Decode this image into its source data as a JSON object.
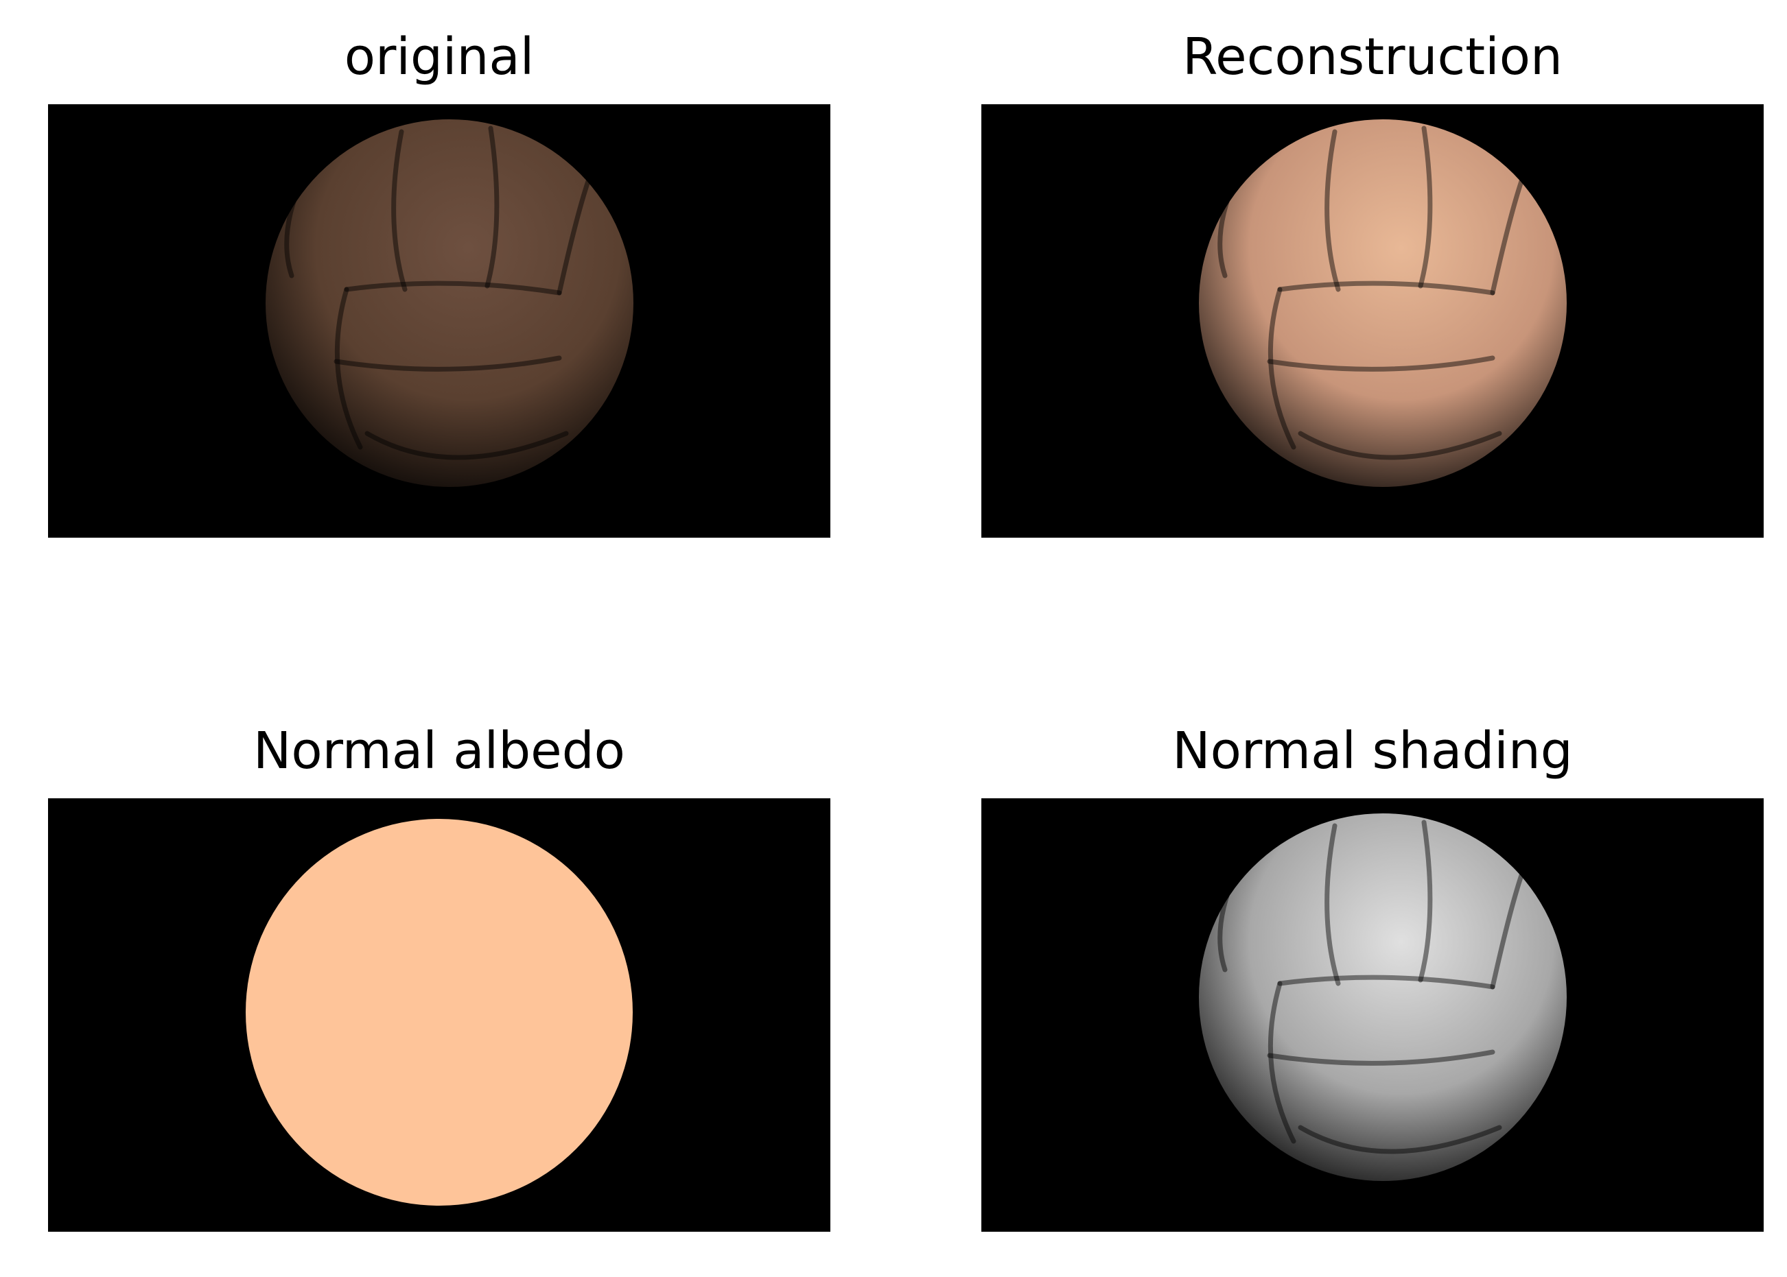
{
  "figure": {
    "panels": [
      {
        "id": "original",
        "title": "original",
        "render": "shaded-ball",
        "tint": "#5a4030",
        "highlight": "#6e5040"
      },
      {
        "id": "reconstruction",
        "title": "Reconstruction",
        "render": "shaded-ball",
        "tint": "#c8957a",
        "highlight": "#e8b896"
      },
      {
        "id": "albedo",
        "title": "Normal albedo",
        "render": "flat-disk",
        "tint": "#fec499",
        "highlight": "#fec499"
      },
      {
        "id": "shading",
        "title": "Normal shading",
        "render": "shaded-ball",
        "tint": "#a8a8a8",
        "highlight": "#e0e0e0"
      }
    ],
    "background_color": "#000000"
  }
}
